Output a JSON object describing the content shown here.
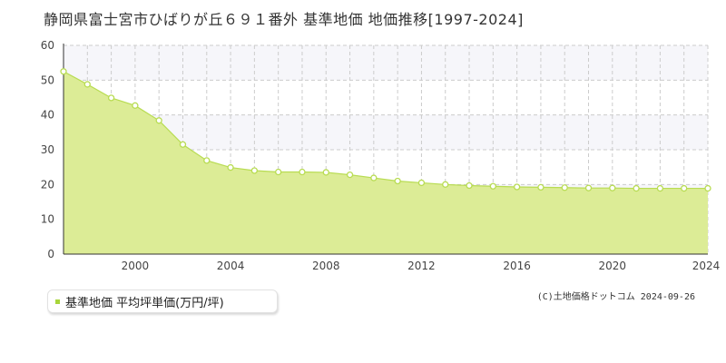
{
  "chart_data": {
    "type": "area",
    "title": "静岡県富士宮市ひばりが丘６９１番外 基準地価 地価推移[1997-2024]",
    "xlabel": "",
    "ylabel": "",
    "xlim": [
      1997,
      2024
    ],
    "ylim": [
      0,
      60
    ],
    "x_ticks": [
      "2000",
      "2004",
      "2008",
      "2012",
      "2016",
      "2020",
      "2024"
    ],
    "y_ticks": [
      "0",
      "10",
      "20",
      "30",
      "40",
      "50",
      "60"
    ],
    "grid": true,
    "legend_position": "bottom-left",
    "series": [
      {
        "name": "基準地価 平均坪単価(万円/坪)",
        "x": [
          1997,
          1998,
          1999,
          2000,
          2001,
          2002,
          2003,
          2004,
          2005,
          2006,
          2007,
          2008,
          2009,
          2010,
          2011,
          2012,
          2013,
          2014,
          2015,
          2016,
          2017,
          2018,
          2019,
          2020,
          2021,
          2022,
          2023,
          2024
        ],
        "values": [
          52.5,
          48.8,
          44.9,
          42.7,
          38.4,
          31.5,
          26.9,
          24.9,
          24.0,
          23.6,
          23.6,
          23.5,
          22.8,
          21.9,
          21.0,
          20.5,
          20.0,
          19.7,
          19.5,
          19.3,
          19.2,
          19.1,
          19.0,
          19.0,
          18.9,
          18.9,
          18.9,
          18.9
        ]
      }
    ],
    "colors": {
      "fill": "#dcec96",
      "line": "#b8dc52",
      "marker_stroke": "#b8dc52",
      "marker_fill": "#ffffff",
      "band": "#f6f6fa",
      "grid": "#cccccc"
    }
  },
  "legend": {
    "label": "基準地価 平均坪単価(万円/坪)"
  },
  "credit": "(C)土地価格ドットコム 2024-09-26"
}
